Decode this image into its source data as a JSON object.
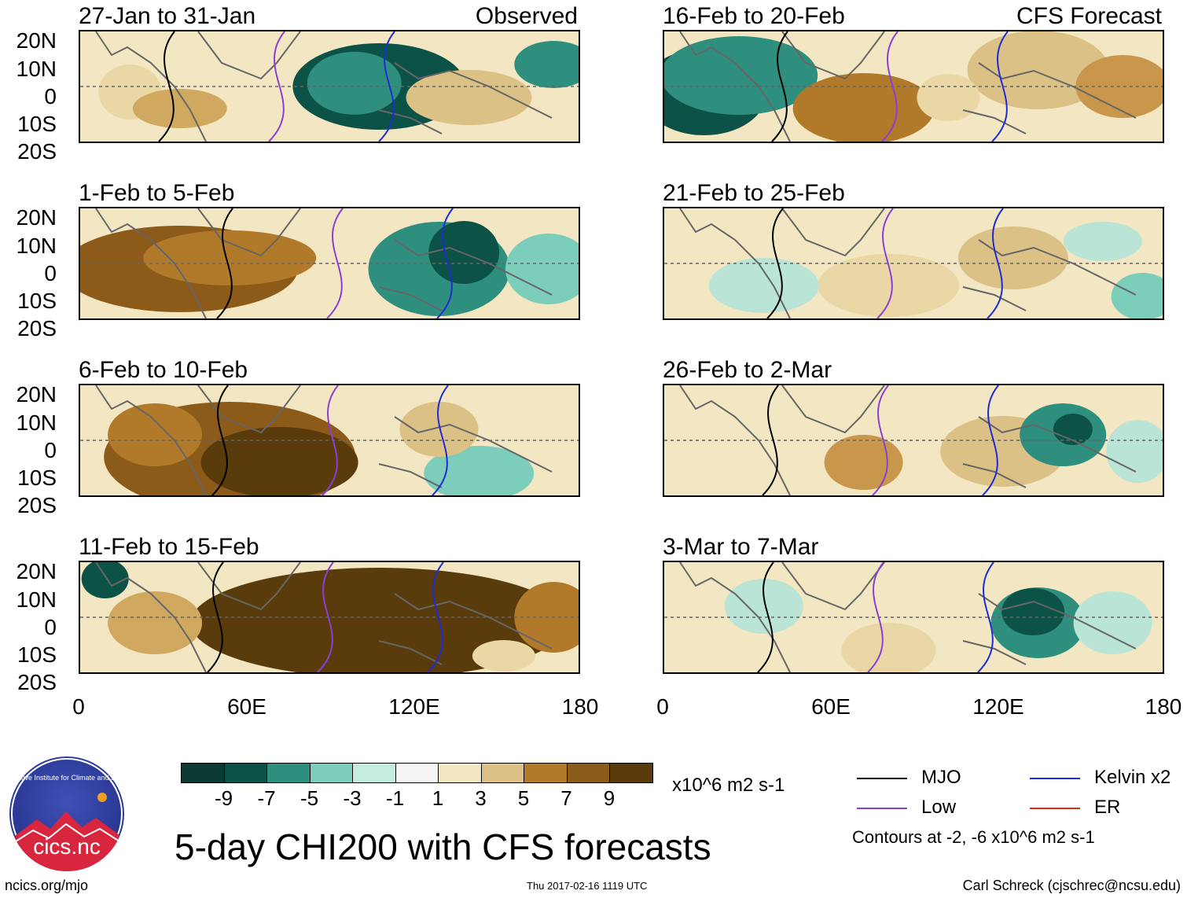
{
  "panels": [
    {
      "dates": "27-Jan to 31-Jan",
      "tag": "Observed",
      "pattern": [
        [
          10,
          12,
          "#5a3b0b",
          0
        ],
        [
          1,
          1,
          "#5a3b0b",
          0
        ]
      ],
      "blobs": [
        [
          60,
          50,
          110,
          55,
          "#0d5247"
        ],
        [
          55,
          47,
          60,
          40,
          "#2e8f7f"
        ],
        [
          10,
          55,
          40,
          35,
          "#e9d8a6"
        ],
        [
          20,
          70,
          60,
          25,
          "#d0a860"
        ],
        [
          78,
          60,
          80,
          35,
          "#dcc186"
        ],
        [
          95,
          30,
          50,
          30,
          "#2e8f7f"
        ]
      ]
    },
    {
      "dates": "16-Feb to 20-Feb",
      "tag": "CFS Forecast",
      "blobs": [
        [
          8,
          55,
          80,
          55,
          "#0d5247"
        ],
        [
          15,
          40,
          100,
          50,
          "#2e8f7f"
        ],
        [
          40,
          70,
          90,
          45,
          "#b07a2a"
        ],
        [
          75,
          35,
          90,
          50,
          "#dcc186"
        ],
        [
          92,
          50,
          60,
          40,
          "#c9974c"
        ],
        [
          57,
          60,
          40,
          30,
          "#e9d8a6"
        ]
      ]
    },
    {
      "dates": "1-Feb to 5-Feb",
      "blobs": [
        [
          20,
          55,
          150,
          55,
          "#8c5a19"
        ],
        [
          30,
          45,
          110,
          35,
          "#b07a2a"
        ],
        [
          72,
          55,
          90,
          60,
          "#2e8f7f"
        ],
        [
          77,
          40,
          45,
          40,
          "#0d5247"
        ],
        [
          94,
          55,
          55,
          45,
          "#7dcdbb"
        ]
      ]
    },
    {
      "dates": "21-Feb to 25-Feb",
      "blobs": [
        [
          45,
          70,
          90,
          40,
          "#e9d8a6"
        ],
        [
          70,
          45,
          70,
          40,
          "#dcc186"
        ],
        [
          20,
          70,
          70,
          35,
          "#b9e4d6"
        ],
        [
          88,
          30,
          50,
          25,
          "#b9e4d6"
        ],
        [
          96,
          80,
          40,
          30,
          "#7dcdbb"
        ]
      ]
    },
    {
      "dates": "6-Feb to 10-Feb",
      "blobs": [
        [
          30,
          65,
          160,
          70,
          "#8c5a19"
        ],
        [
          40,
          70,
          100,
          45,
          "#5a3b0b"
        ],
        [
          15,
          45,
          60,
          40,
          "#b07a2a"
        ],
        [
          80,
          80,
          70,
          35,
          "#7dcdbb"
        ],
        [
          72,
          40,
          50,
          35,
          "#dcc186"
        ]
      ]
    },
    {
      "dates": "26-Feb to 2-Mar",
      "blobs": [
        [
          68,
          60,
          80,
          45,
          "#dcc186"
        ],
        [
          40,
          70,
          50,
          35,
          "#c9974c"
        ],
        [
          80,
          45,
          55,
          40,
          "#2e8f7f"
        ],
        [
          82,
          40,
          25,
          20,
          "#0d5247"
        ],
        [
          95,
          60,
          40,
          40,
          "#b9e4d6"
        ]
      ]
    },
    {
      "dates": "11-Feb to 15-Feb",
      "blobs": [
        [
          60,
          55,
          240,
          70,
          "#5a3b0b"
        ],
        [
          15,
          55,
          60,
          40,
          "#d0a860"
        ],
        [
          5,
          15,
          30,
          25,
          "#0d5247"
        ],
        [
          95,
          50,
          50,
          45,
          "#b07a2a"
        ],
        [
          85,
          85,
          40,
          20,
          "#e9d8a6"
        ]
      ]
    },
    {
      "dates": "3-Mar to 7-Mar",
      "blobs": [
        [
          75,
          55,
          60,
          45,
          "#2e8f7f"
        ],
        [
          74,
          45,
          40,
          30,
          "#0d5247"
        ],
        [
          45,
          80,
          60,
          35,
          "#e9d8a6"
        ],
        [
          90,
          55,
          50,
          40,
          "#b9e4d6"
        ],
        [
          20,
          40,
          50,
          35,
          "#b9e4d6"
        ]
      ]
    }
  ],
  "y_ticks": [
    "20N",
    "10N",
    "0",
    "10S",
    "20S"
  ],
  "x_ticks": [
    "0",
    "60E",
    "120E",
    "180"
  ],
  "colorbar": {
    "colors": [
      "#0b3b34",
      "#0d5247",
      "#2e8f7f",
      "#7dcdbb",
      "#c5ebe1",
      "#f5f5f5",
      "#f3e6c2",
      "#dcc186",
      "#b07a2a",
      "#8c5a19",
      "#5a3b0b"
    ],
    "labels": [
      "-9",
      "-7",
      "-5",
      "-3",
      "-1",
      "1",
      "3",
      "5",
      "7",
      "9"
    ]
  },
  "units": "x10^6 m2 s-1",
  "title": "5-day CHI200 with CFS forecasts",
  "legend": {
    "mjo": "MJO",
    "kelvin": "Kelvin x2",
    "low": "Low",
    "er": "ER",
    "contours": "Contours at -2, -6 x10^6 m2 s-1",
    "colors": {
      "mjo": "#000000",
      "kelvin": "#1f2bd6",
      "low": "#8b3fd6",
      "er": "#e02a1f"
    }
  },
  "logo_text": "cics.nc",
  "logo_ring": "Cooperative Institute for Climate and Satellites",
  "footer": {
    "left": "ncics.org/mjo",
    "center": "Thu 2017-02-16 1119 UTC",
    "right": "Carl Schreck (cjschrec@ncsu.edu)"
  }
}
